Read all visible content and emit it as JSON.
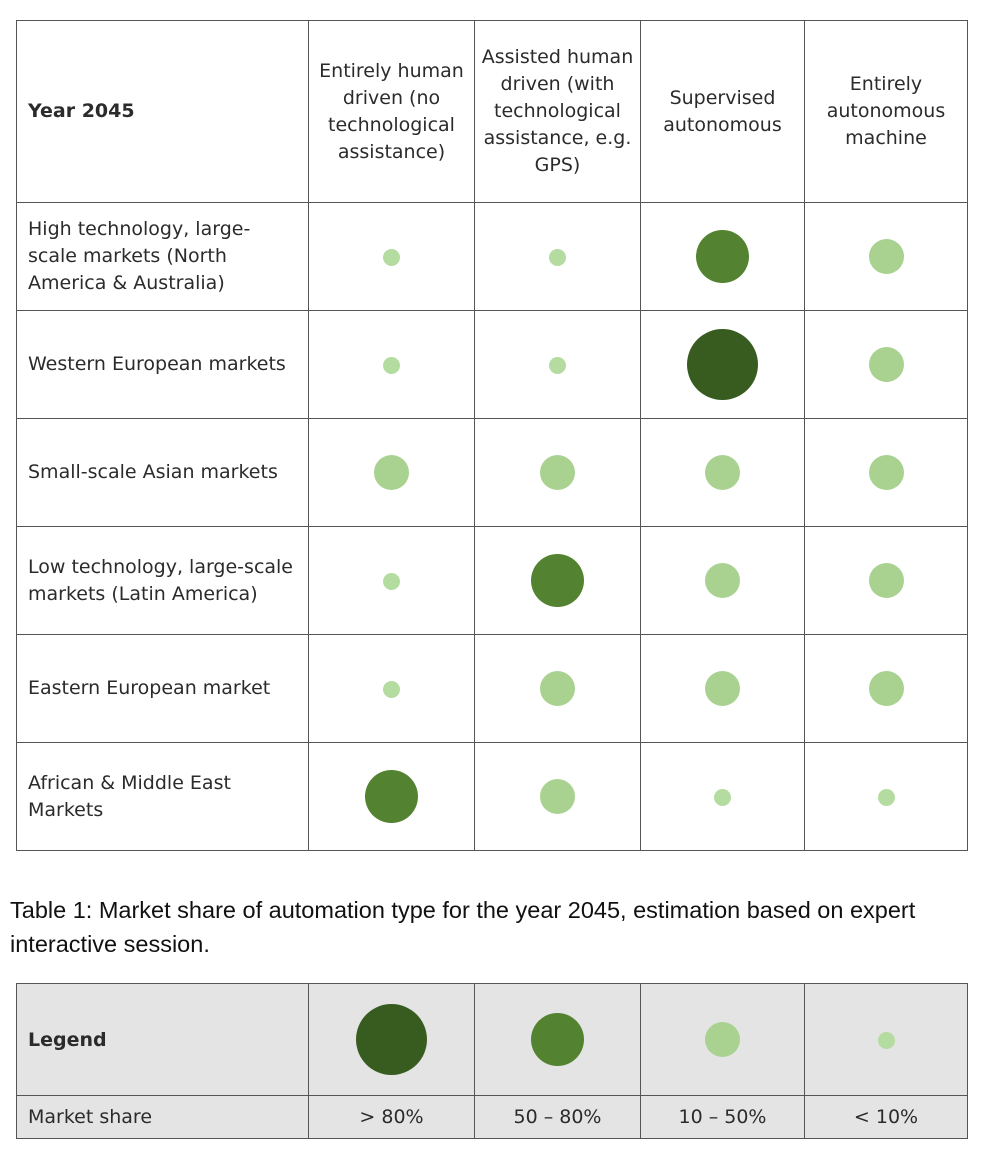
{
  "table": {
    "corner_label": "Year 2045",
    "columns": [
      "Entirely human driven (no technological assistance)",
      "Assisted human driven (with technological assistance, e.g. GPS)",
      "Supervised autonomous",
      "Entirely autonomous machine"
    ],
    "rows": [
      {
        "label": "High technology, large-scale markets (North America & Australia)",
        "levels": [
          "<10%",
          "<10%",
          "50–80%",
          "10–50%"
        ]
      },
      {
        "label": "Western European markets",
        "levels": [
          "<10%",
          "<10%",
          ">80%",
          "10–50%"
        ]
      },
      {
        "label": "Small-scale Asian markets",
        "levels": [
          "10–50%",
          "10–50%",
          "10–50%",
          "10–50%"
        ]
      },
      {
        "label": "Low technology, large-scale markets (Latin America)",
        "levels": [
          "<10%",
          "50–80%",
          "10–50%",
          "10–50%"
        ]
      },
      {
        "label": "Eastern European market",
        "levels": [
          "<10%",
          "10–50%",
          "10–50%",
          "10–50%"
        ]
      },
      {
        "label": "African & Middle East Markets",
        "levels": [
          "50–80%",
          "10–50%",
          "<10%",
          "<10%"
        ]
      }
    ]
  },
  "caption": "Table 1: Market share of automation type for the year 2045, estimation based on expert interactive session.",
  "legend": {
    "title": "Legend",
    "row_label": "Market share",
    "items": [
      {
        "value": "> 80%",
        "key": ">80%",
        "color": "#385c1f"
      },
      {
        "value": "50 – 80%",
        "key": "50–80%",
        "color": "#538330"
      },
      {
        "value": "10 – 50%",
        "key": "10–50%",
        "color": "#a9d291"
      },
      {
        "value": "< 10%",
        "key": "<10%",
        "color": "#b5dca0"
      }
    ]
  }
}
